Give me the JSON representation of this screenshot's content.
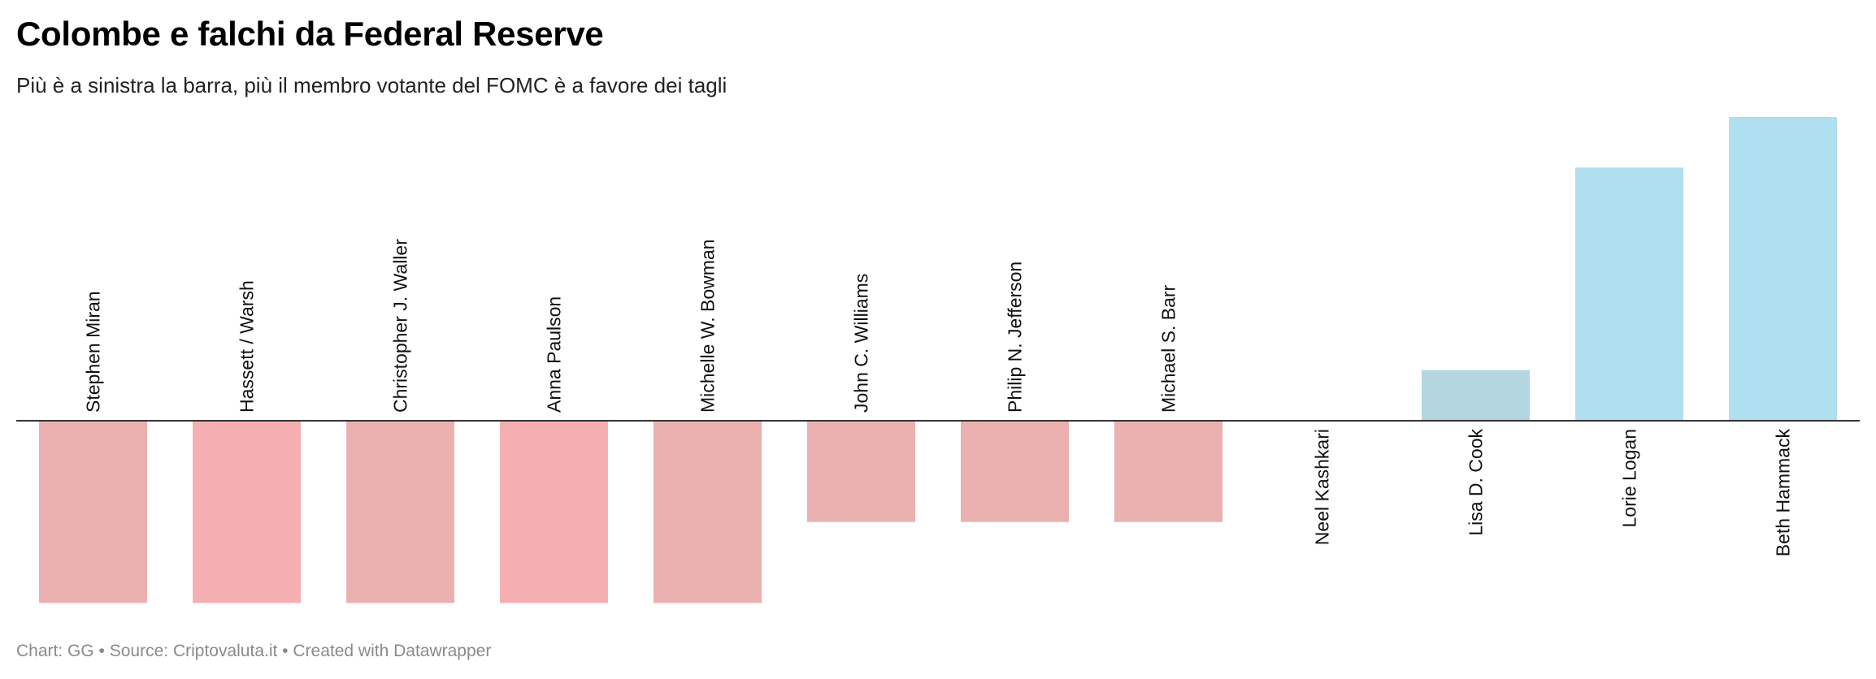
{
  "title": "Colombe e falchi da Federal Reserve",
  "subtitle": "Più è a sinistra la barra, più il membro votante del FOMC è a favore dei tagli",
  "footer": {
    "chart_label": "Chart: GG",
    "separator": " • ",
    "source_label": "Source: Criptovaluta.it",
    "credit": "Created with Datawrapper"
  },
  "colors": {
    "dovish": "#ebb0b0",
    "dovish_strong": "#f5afb2",
    "hawkish": "#b0dff0",
    "hawkish_muted": "#b3d6e0",
    "axis": "#333333",
    "label": "#111111"
  },
  "chart_data": {
    "type": "bar",
    "orientation": "vertical",
    "title": "Colombe e falchi da Federal Reserve",
    "subtitle": "Più è a sinistra la barra, più il membro votante del FOMC è a favore dei tagli",
    "xlabel": "",
    "ylabel": "",
    "categories": [
      "Stephen Miran",
      "Hassett / Warsh",
      "Christopher J. Waller",
      "Anna Paulson",
      "Michelle W. Bowman",
      "John C. Williams",
      "Philip N. Jefferson",
      "Michael S. Barr",
      "Neel Kashkari",
      "Lisa D. Cook",
      "Lorie Logan",
      "Beth Hammack"
    ],
    "values": [
      -3.6,
      -3.6,
      -3.6,
      -3.6,
      -3.6,
      -2,
      -2,
      -2,
      0,
      1,
      5,
      6
    ],
    "bar_colors": [
      "#ebb0b0",
      "#f5afb2",
      "#ebb0b0",
      "#f5afb2",
      "#ebb0b0",
      "#ebb0b0",
      "#ebb0b0",
      "#ebb0b0",
      "#ebb0b0",
      "#b3d6e0",
      "#b0dff0",
      "#b0dff0"
    ],
    "ylim": [
      -3.6,
      6
    ],
    "grid": false,
    "legend": "none"
  }
}
